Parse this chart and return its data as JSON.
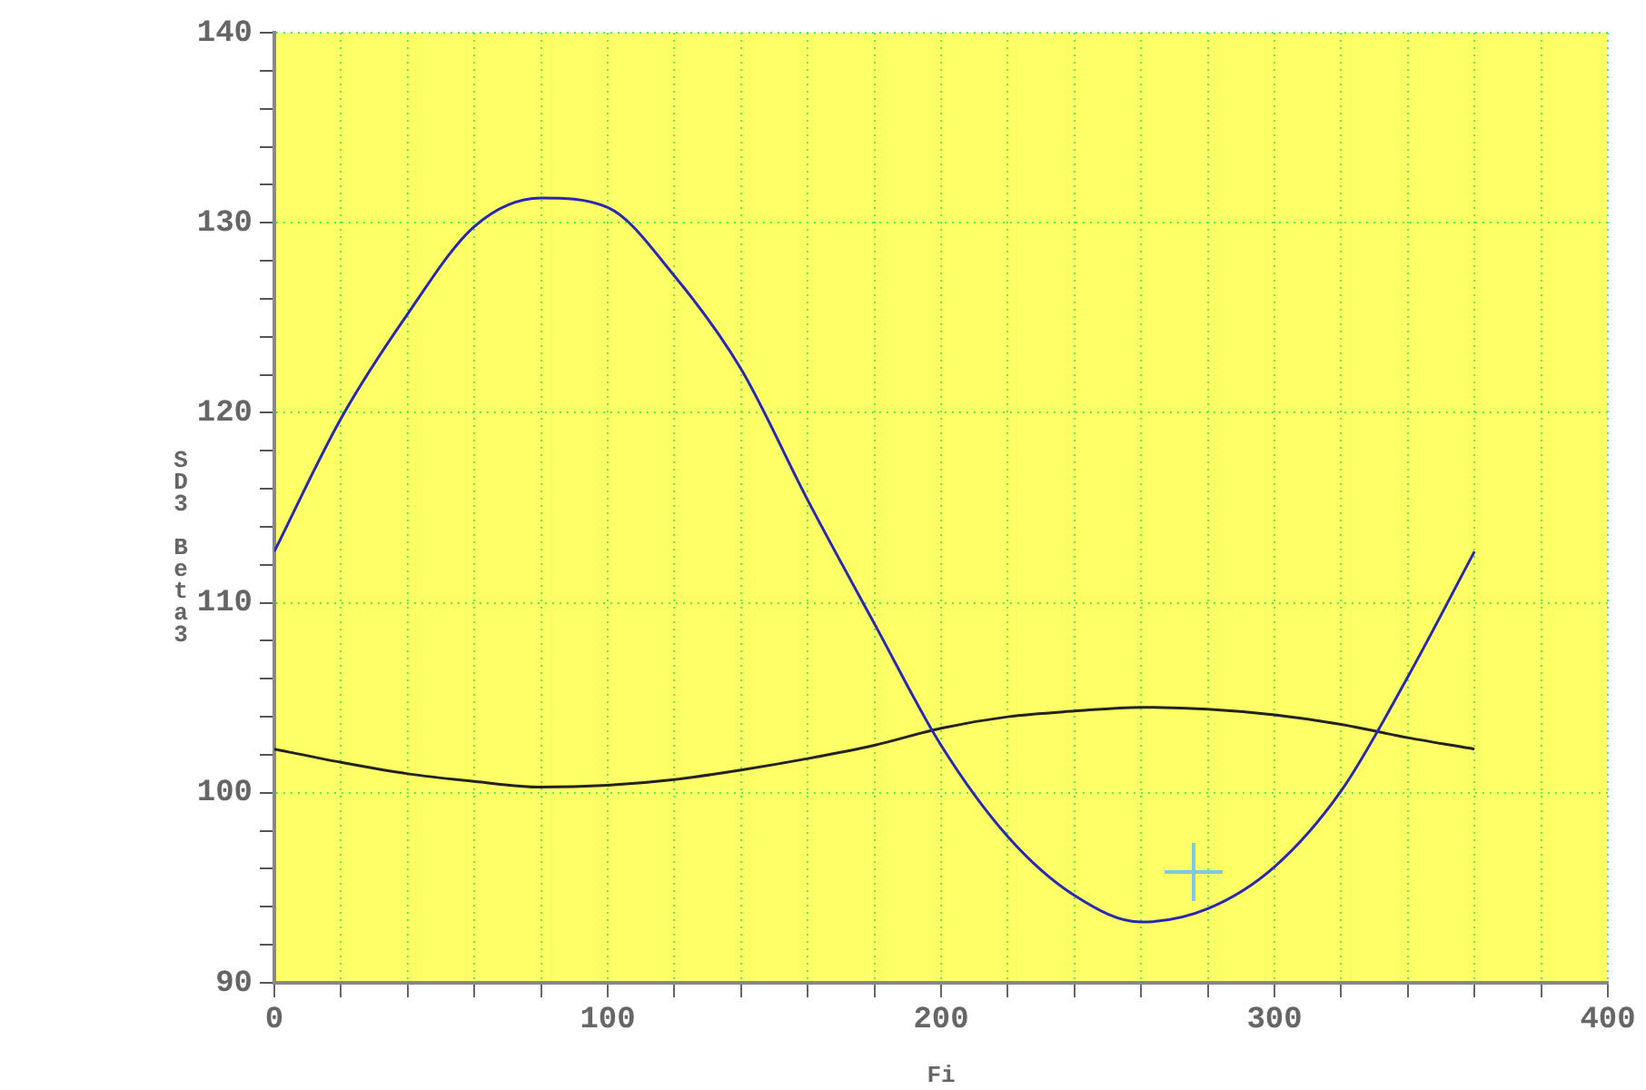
{
  "chart_data": {
    "type": "line",
    "xlabel": "Fi",
    "ylabel": "SD3 Beta3",
    "x": [
      0,
      20,
      40,
      60,
      80,
      100,
      120,
      140,
      160,
      180,
      200,
      220,
      240,
      260,
      280,
      300,
      320,
      340,
      360
    ],
    "series": [
      {
        "color": "#2828b4",
        "values": [
          112.7,
          119.7,
          125.2,
          129.8,
          131.3,
          130.8,
          127.2,
          122.3,
          115.4,
          108.9,
          102.5,
          97.7,
          94.6,
          93.2,
          93.9,
          96.1,
          100.1,
          106.1,
          112.7
        ]
      },
      {
        "color": "#222222",
        "values": [
          102.3,
          101.6,
          101.0,
          100.6,
          100.3,
          100.4,
          100.7,
          101.2,
          101.8,
          102.5,
          103.4,
          104.0,
          104.3,
          104.5,
          104.4,
          104.1,
          103.6,
          102.9,
          102.3
        ]
      }
    ],
    "xlim": [
      0,
      400
    ],
    "xticks": [
      0,
      {
        "value": 20,
        "label": null
      },
      {
        "value": 40,
        "label": null
      },
      {
        "value": 60,
        "label": null
      },
      {
        "value": 80,
        "label": null
      },
      100,
      {
        "value": 120,
        "label": null
      },
      {
        "value": 140,
        "label": null
      },
      {
        "value": 160,
        "label": null
      },
      {
        "value": 180,
        "label": null
      },
      200,
      {
        "value": 220,
        "label": null
      },
      {
        "value": 240,
        "label": null
      },
      {
        "value": 260,
        "label": null
      },
      {
        "value": 280,
        "label": null
      },
      300,
      {
        "value": 320,
        "label": null
      },
      {
        "value": 340,
        "label": null
      },
      {
        "value": 360,
        "label": null
      },
      {
        "value": 380,
        "label": null
      },
      400
    ],
    "ylim": [
      90,
      140
    ],
    "yticks": [
      90,
      {
        "value": 92,
        "label": null
      },
      {
        "value": 94,
        "label": null
      },
      {
        "value": 96,
        "label": null
      },
      {
        "value": 98,
        "label": null
      },
      100,
      {
        "value": 102,
        "label": null
      },
      {
        "value": 104,
        "label": null
      },
      {
        "value": 106,
        "label": null
      },
      {
        "value": 108,
        "label": null
      },
      110,
      {
        "value": 112,
        "label": null
      },
      {
        "value": 114,
        "label": null
      },
      {
        "value": 116,
        "label": null
      },
      {
        "value": 118,
        "label": null
      },
      120,
      {
        "value": 122,
        "label": null
      },
      {
        "value": 124,
        "label": null
      },
      {
        "value": 126,
        "label": null
      },
      {
        "value": 128,
        "label": null
      },
      130,
      {
        "value": 132,
        "label": null
      },
      {
        "value": 134,
        "label": null
      },
      {
        "value": 136,
        "label": null
      },
      {
        "value": 138,
        "label": null
      },
      140
    ],
    "grid": true,
    "marker": "none",
    "line_style": "solid"
  }
}
